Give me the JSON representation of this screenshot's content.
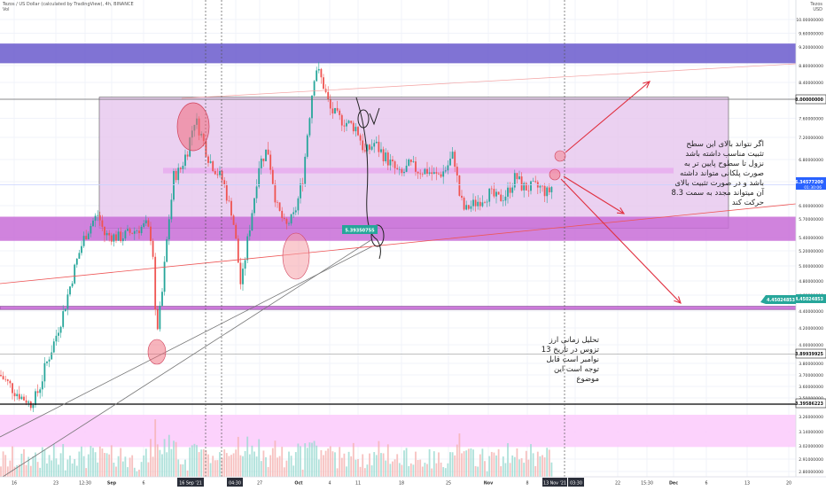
{
  "header": {
    "line1": "Tezos / US Dollar (calculated by TradingView), 4h, BINANCE",
    "line2": "Vol",
    "currency_line1": "Tezos",
    "currency_line2": "USD"
  },
  "chart_data": {
    "type": "candlestick",
    "symbol": "Tezos / US Dollar",
    "interval": "4h",
    "exchange": "BINANCE",
    "yaxis_ticks": [
      "10.00000000",
      "9.60000000",
      "9.20000000",
      "8.80000000",
      "8.40000000",
      "8.00000000",
      "7.60000000",
      "7.20000000",
      "6.80000000",
      "6.40000000",
      "6.00000000",
      "5.70000000",
      "5.40000000",
      "5.20000000",
      "5.00000000",
      "4.80000000",
      "4.60000000",
      "4.40000000",
      "4.20000000",
      "4.00000000",
      "3.80000000",
      "3.70000000",
      "3.60000000",
      "3.50000000",
      "3.40000000",
      "3.26000000",
      "3.14000000",
      "3.02000000",
      "2.91000000",
      "2.80000000"
    ],
    "xaxis_ticks": [
      "16",
      "23",
      "12:30",
      "Sep",
      "6",
      "16 Sep '21",
      "04:30",
      "27",
      "Oct",
      "4",
      "11",
      "18",
      "25",
      "Nov",
      "8",
      "13 Nov '21",
      "03:30",
      "22",
      "15:30",
      "Dec",
      "6",
      "13",
      "20"
    ],
    "price_labels": [
      {
        "value": "8.00000000",
        "color": "#ffffff"
      },
      {
        "value": "6.34577200",
        "sub": "01:30:06",
        "color": "#2962ff"
      },
      {
        "value": "4.45024853",
        "color": "#26a69a"
      },
      {
        "value": "3.89939925",
        "color": "#ffffff"
      },
      {
        "value": "3.39586223",
        "color": "#ffffff"
      }
    ],
    "marker_label": "5.39350755",
    "zones": [
      {
        "name": "resistance-zone",
        "top": 9.3,
        "bottom": 8.85,
        "color": "#6a5acd"
      },
      {
        "name": "range-box",
        "top": 8.05,
        "bottom": 5.55,
        "color": "#e6c6ee"
      },
      {
        "name": "mid-band",
        "top": 6.65,
        "bottom": 6.55,
        "color": "#e7a5ee"
      },
      {
        "name": "support-zone",
        "top": 5.75,
        "bottom": 5.35,
        "color": "#c86dd7"
      },
      {
        "name": "low-band",
        "top": 4.46,
        "bottom": 4.42,
        "color": "#c86dd7"
      },
      {
        "name": "bottom-zone",
        "top": 3.28,
        "bottom": 3.01,
        "color": "#fccdfc"
      }
    ]
  },
  "annotations": {
    "note1": "اگر نتواند بالای این سطح تثبیت مناسب داشته باشد نزول تا سطوح پایین تر به صورت پلکانی متواند داشته باشد و در صورت تثبیت بالای آن میتواند مجدد به سمت 8.3 حرکت کند",
    "note2": "تحلیل زمانی ارز تزوس در تاریخ 13 نوامبر است قابل توجه است این موضوع"
  }
}
